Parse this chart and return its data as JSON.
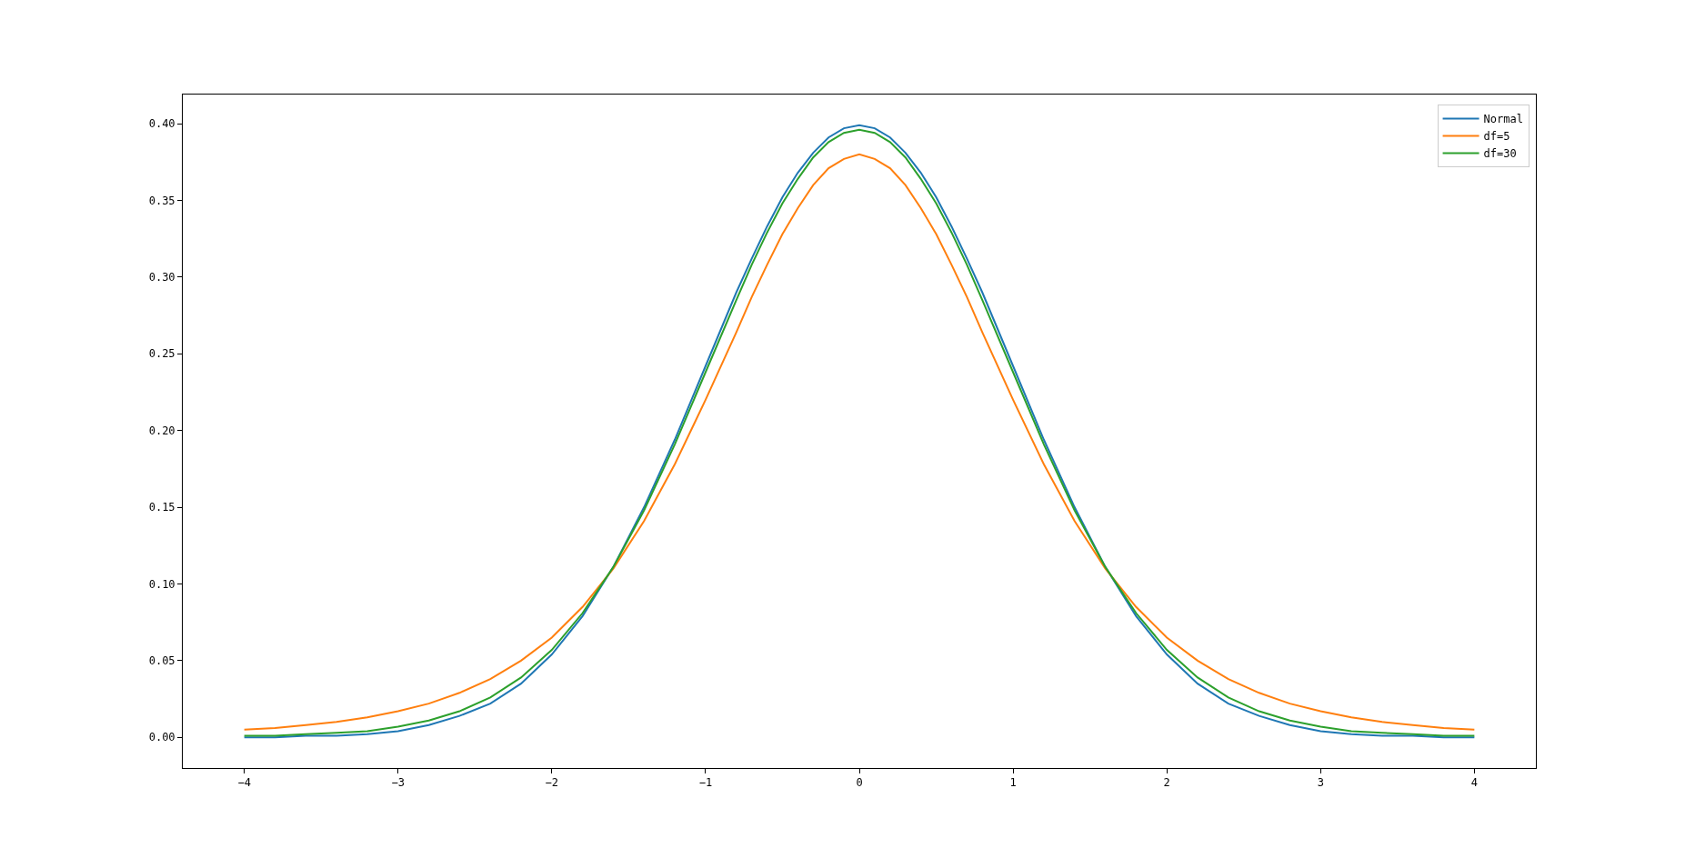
{
  "chart_data": {
    "type": "line",
    "x": [
      -4,
      -3.8,
      -3.6,
      -3.4,
      -3.2,
      -3,
      -2.8,
      -2.6,
      -2.4,
      -2.2,
      -2,
      -1.8,
      -1.6,
      -1.4,
      -1.2,
      -1,
      -0.8,
      -0.7,
      -0.6,
      -0.5,
      -0.4,
      -0.3,
      -0.2,
      -0.1,
      0,
      0.1,
      0.2,
      0.3,
      0.4,
      0.5,
      0.6,
      0.7,
      0.8,
      1,
      1.2,
      1.4,
      1.6,
      1.8,
      2,
      2.2,
      2.4,
      2.6,
      2.8,
      3,
      3.2,
      3.4,
      3.6,
      3.8,
      4
    ],
    "series": [
      {
        "name": "Normal",
        "color": "#1f77b4",
        "values": [
          0.0,
          0.0,
          0.001,
          0.001,
          0.002,
          0.004,
          0.008,
          0.014,
          0.022,
          0.035,
          0.054,
          0.079,
          0.111,
          0.15,
          0.194,
          0.242,
          0.29,
          0.312,
          0.333,
          0.352,
          0.368,
          0.381,
          0.391,
          0.397,
          0.399,
          0.397,
          0.391,
          0.381,
          0.368,
          0.352,
          0.333,
          0.312,
          0.29,
          0.242,
          0.194,
          0.15,
          0.111,
          0.079,
          0.054,
          0.035,
          0.022,
          0.014,
          0.008,
          0.004,
          0.002,
          0.001,
          0.001,
          0.0,
          0.0
        ]
      },
      {
        "name": "df=5",
        "color": "#ff7f0e",
        "values": [
          0.005,
          0.006,
          0.008,
          0.01,
          0.013,
          0.017,
          0.022,
          0.029,
          0.038,
          0.05,
          0.065,
          0.085,
          0.11,
          0.141,
          0.178,
          0.22,
          0.264,
          0.287,
          0.308,
          0.328,
          0.345,
          0.36,
          0.371,
          0.377,
          0.38,
          0.377,
          0.371,
          0.36,
          0.345,
          0.328,
          0.308,
          0.287,
          0.264,
          0.22,
          0.178,
          0.141,
          0.11,
          0.085,
          0.065,
          0.05,
          0.038,
          0.029,
          0.022,
          0.017,
          0.013,
          0.01,
          0.008,
          0.006,
          0.005
        ]
      },
      {
        "name": "df=30",
        "color": "#2ca02c",
        "values": [
          0.001,
          0.001,
          0.002,
          0.003,
          0.004,
          0.007,
          0.011,
          0.017,
          0.026,
          0.039,
          0.057,
          0.081,
          0.111,
          0.148,
          0.191,
          0.238,
          0.285,
          0.308,
          0.329,
          0.348,
          0.364,
          0.378,
          0.388,
          0.394,
          0.396,
          0.394,
          0.388,
          0.378,
          0.364,
          0.348,
          0.329,
          0.308,
          0.285,
          0.238,
          0.191,
          0.148,
          0.111,
          0.081,
          0.057,
          0.039,
          0.026,
          0.017,
          0.011,
          0.007,
          0.004,
          0.003,
          0.002,
          0.001,
          0.001
        ]
      }
    ],
    "xlim": [
      -4.4,
      4.4
    ],
    "xticks": [
      {
        "value": -4,
        "label": "−4"
      },
      {
        "value": -3,
        "label": "−3"
      },
      {
        "value": -2,
        "label": "−2"
      },
      {
        "value": -1,
        "label": "−1"
      },
      0,
      1,
      2,
      3,
      4
    ],
    "ylim": [
      -0.02,
      0.419
    ],
    "yticks": [
      {
        "value": 0,
        "label": "0.00"
      },
      {
        "value": 0.05,
        "label": "0.05"
      },
      {
        "value": 0.1,
        "label": "0.10"
      },
      {
        "value": 0.15,
        "label": "0.15"
      },
      {
        "value": 0.2,
        "label": "0.20"
      },
      {
        "value": 0.25,
        "label": "0.25"
      },
      {
        "value": 0.3,
        "label": "0.30"
      },
      {
        "value": 0.35,
        "label": "0.35"
      },
      {
        "value": 0.4,
        "label": "0.40"
      }
    ],
    "legend": "top right",
    "grid": false,
    "marker": "none",
    "line_style": "solid"
  }
}
